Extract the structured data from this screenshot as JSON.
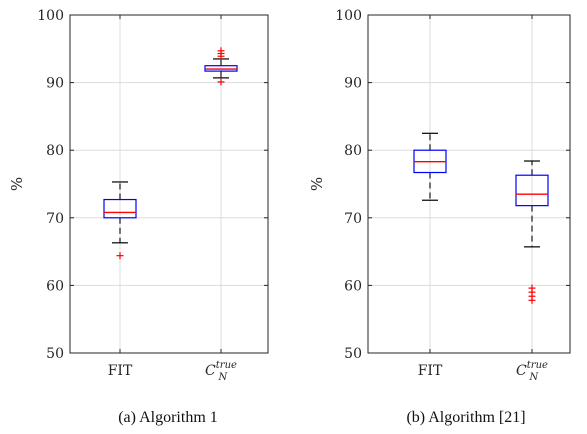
{
  "chart_data": [
    {
      "type": "box",
      "caption": "(a) Algorithm 1",
      "ylabel": "%",
      "ylim": [
        50,
        100
      ],
      "yticks": [
        50,
        60,
        70,
        80,
        90,
        100
      ],
      "grid": true,
      "categories": [
        {
          "label": "FIT",
          "label_main": "FIT",
          "label_sub": "",
          "label_sup": ""
        },
        {
          "label": "C_N^true",
          "label_main": "C",
          "label_sub": "N",
          "label_sup": "true"
        }
      ],
      "boxes": [
        {
          "whisker_low": 66.3,
          "q1": 70.0,
          "median": 70.8,
          "q3": 72.7,
          "whisker_high": 75.3,
          "outliers": [
            64.4
          ]
        },
        {
          "whisker_low": 90.7,
          "q1": 91.7,
          "median": 92.0,
          "q3": 92.5,
          "whisker_high": 93.5,
          "outliers": [
            90.1,
            93.9,
            94.3,
            94.7
          ]
        }
      ],
      "colors": {
        "box": "#0000ff",
        "median": "#ff0000",
        "whisker": "#000000",
        "outlier": "#ff0000",
        "grid": "#dcdcdc"
      }
    },
    {
      "type": "box",
      "caption": "(b) Algorithm [21]",
      "ylabel": "%",
      "ylim": [
        50,
        100
      ],
      "yticks": [
        50,
        60,
        70,
        80,
        90,
        100
      ],
      "grid": true,
      "categories": [
        {
          "label": "FIT",
          "label_main": "FIT",
          "label_sub": "",
          "label_sup": ""
        },
        {
          "label": "C_N^true",
          "label_main": "C",
          "label_sub": "N",
          "label_sup": "true"
        }
      ],
      "boxes": [
        {
          "whisker_low": 72.6,
          "q1": 76.7,
          "median": 78.3,
          "q3": 80.0,
          "whisker_high": 82.5,
          "outliers": []
        },
        {
          "whisker_low": 65.7,
          "q1": 71.8,
          "median": 73.5,
          "q3": 76.3,
          "whisker_high": 78.4,
          "outliers": [
            57.8,
            58.4,
            59.0,
            59.6
          ]
        }
      ],
      "colors": {
        "box": "#0000ff",
        "median": "#ff0000",
        "whisker": "#000000",
        "outlier": "#ff0000",
        "grid": "#dcdcdc"
      }
    }
  ]
}
